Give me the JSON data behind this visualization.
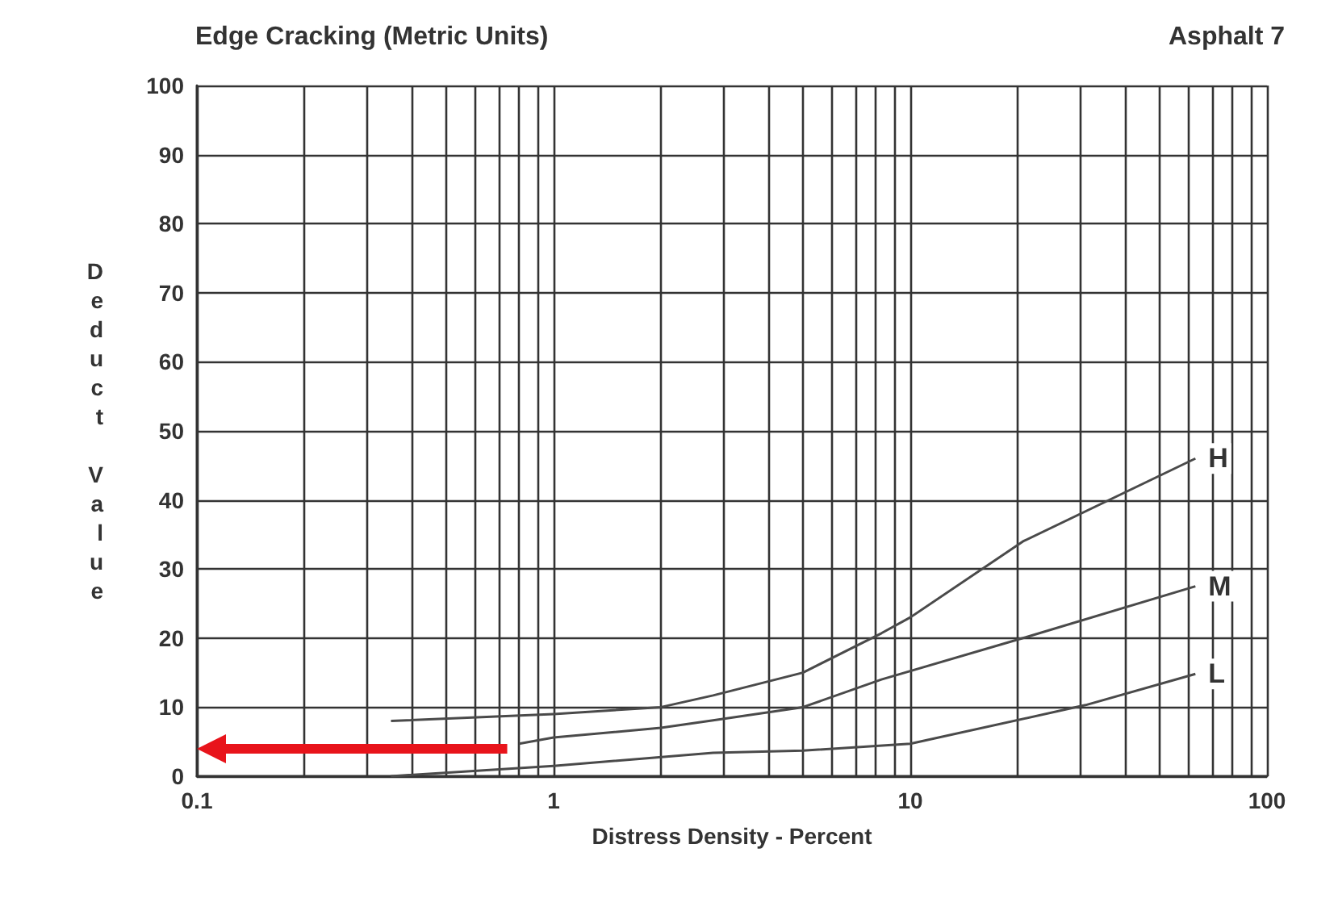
{
  "chart_data": {
    "type": "line",
    "title": "Edge Cracking (Metric Units)",
    "subtitle": "Asphalt 7",
    "xlabel": "Distress Density - Percent",
    "ylabel": "Deduct Value",
    "log": "x",
    "grid": true,
    "legend": false,
    "marker": "none",
    "line_style": "solid",
    "xlim": [
      0.1,
      100
    ],
    "ylim": [
      0,
      100
    ],
    "xticks": [
      0.1,
      {
        "value": 0.2,
        "label": null
      },
      {
        "value": 0.3,
        "label": null
      },
      {
        "value": 0.4,
        "label": null
      },
      {
        "value": 0.5,
        "label": null
      },
      {
        "value": 0.6,
        "label": null
      },
      {
        "value": 0.7,
        "label": null
      },
      {
        "value": 0.8,
        "label": null
      },
      {
        "value": 0.9,
        "label": null
      },
      1,
      {
        "value": 2,
        "label": null
      },
      {
        "value": 3,
        "label": null
      },
      {
        "value": 4,
        "label": null
      },
      {
        "value": 5,
        "label": null
      },
      {
        "value": 6,
        "label": null
      },
      {
        "value": 7,
        "label": null
      },
      {
        "value": 8,
        "label": null
      },
      {
        "value": 9,
        "label": null
      },
      10,
      {
        "value": 20,
        "label": null
      },
      {
        "value": 30,
        "label": null
      },
      {
        "value": 40,
        "label": null
      },
      {
        "value": 50,
        "label": null
      },
      {
        "value": 60,
        "label": null
      },
      {
        "value": 70,
        "label": null
      },
      {
        "value": 80,
        "label": null
      },
      {
        "value": 90,
        "label": null
      },
      100
    ],
    "yticks": [
      0,
      10,
      20,
      30,
      40,
      50,
      60,
      70,
      80,
      90,
      100
    ],
    "series": [
      {
        "name": "H",
        "color": "#4a4a4a",
        "x": [
          0.35,
          1,
          2,
          2.8,
          5,
          8.3,
          10,
          20.7,
          63
        ],
        "values": [
          8,
          9,
          10,
          11.7,
          15,
          20.7,
          23,
          34,
          46
        ]
      },
      {
        "name": "M",
        "color": "#4a4a4a",
        "x": [
          0.8,
          1,
          2,
          2.8,
          5,
          8.3,
          20.7,
          63
        ],
        "values": [
          4.7,
          5.6,
          7,
          8.1,
          10,
          14,
          20,
          27.5
        ]
      },
      {
        "name": "L",
        "color": "#4a4a4a",
        "x": [
          0.35,
          1,
          2.8,
          5,
          10,
          31,
          63
        ],
        "values": [
          0,
          1.5,
          3.4,
          3.7,
          4.7,
          10.3,
          14.8
        ]
      }
    ]
  }
}
